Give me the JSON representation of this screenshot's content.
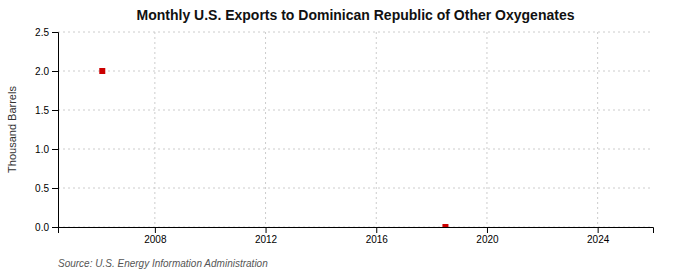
{
  "chart_data": {
    "type": "scatter",
    "title": "Monthly U.S. Exports to Dominican Republic of Other Oxygenates",
    "ylabel": "Thousand Barrels",
    "annotations": [
      "Source: U.S. Energy Information Administration"
    ],
    "x": [
      2006.1,
      2018.5
    ],
    "values": [
      2.0,
      0.0
    ],
    "color": "#cc0000",
    "marker": "square",
    "xlim": [
      2004.5,
      2026
    ],
    "ylim": [
      0.0,
      2.5
    ],
    "xticks": [
      2008,
      2012,
      2016,
      2020,
      2024
    ],
    "yticks": [
      {
        "value": 0.0,
        "label": "0.0"
      },
      0.5,
      {
        "value": 1.0,
        "label": "1.0"
      },
      1.5,
      {
        "value": 2.0,
        "label": "2.0"
      },
      2.5
    ],
    "grid": true
  }
}
